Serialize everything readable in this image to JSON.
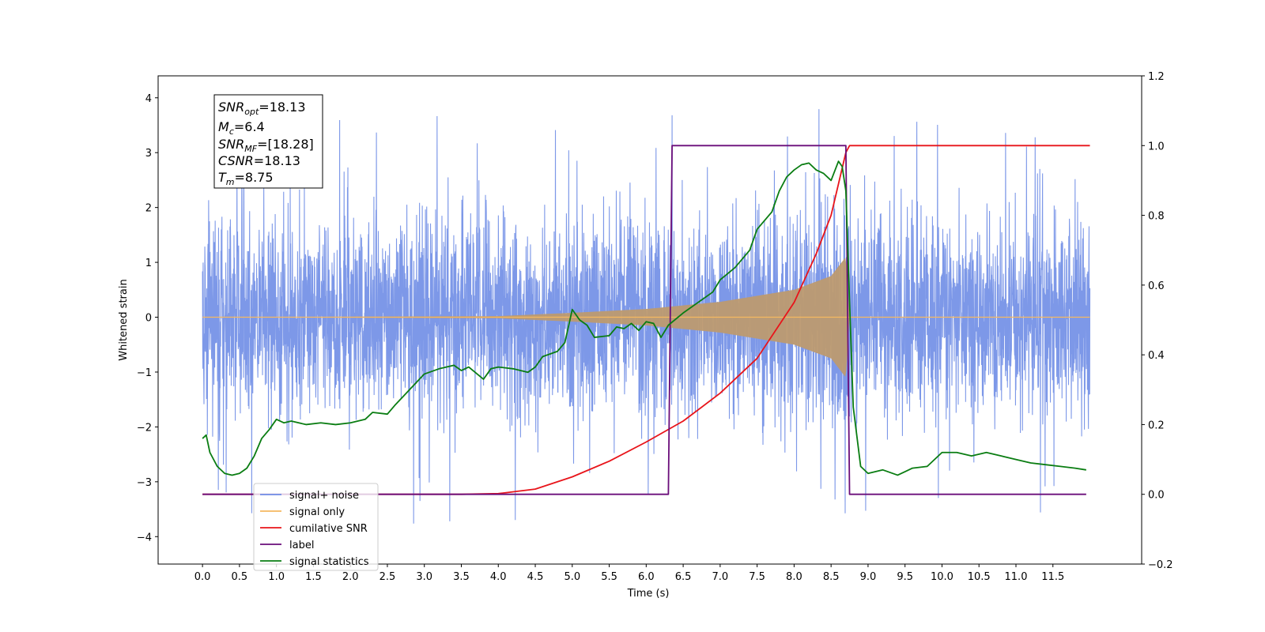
{
  "chart_data": {
    "type": "line",
    "xlabel": "Time (s)",
    "ylabel": "Whitened strain",
    "xlim": [
      -0.6,
      12.7
    ],
    "ylim": [
      -4.5,
      4.4
    ],
    "y2lim": [
      -0.2,
      1.2
    ],
    "x_ticks": [
      0.0,
      0.5,
      1.0,
      1.5,
      2.0,
      2.5,
      3.0,
      3.5,
      4.0,
      4.5,
      5.0,
      5.5,
      6.0,
      6.5,
      7.0,
      7.5,
      8.0,
      8.5,
      9.0,
      9.5,
      10.0,
      10.5,
      11.0,
      11.5
    ],
    "x_tick_labels": [
      "0.0",
      "0.5",
      "1.0",
      "1.5",
      "2.0",
      "2.5",
      "3.0",
      "3.5",
      "4.0",
      "4.5",
      "5.0",
      "5.5",
      "6.0",
      "6.5",
      "7.0",
      "7.5",
      "8.0",
      "8.5",
      "9.0",
      "9.5",
      "10.0",
      "10.5",
      "11.0",
      "11.5"
    ],
    "y_ticks": [
      -4,
      -3,
      -2,
      -1,
      0,
      1,
      2,
      3,
      4
    ],
    "y_tick_labels": [
      "−4",
      "−3",
      "−2",
      "−1",
      "0",
      "1",
      "2",
      "3",
      "4"
    ],
    "y2_ticks": [
      -0.2,
      0.0,
      0.2,
      0.4,
      0.6,
      0.8,
      1.0,
      1.2
    ],
    "y2_tick_labels": [
      "−0.2",
      "0.0",
      "0.2",
      "0.4",
      "0.6",
      "0.8",
      "1.0",
      "1.2"
    ],
    "legend_position": "lower-left",
    "annotation": {
      "snr_opt": {
        "symbol": "SNR",
        "sub": "opt",
        "value": "=18.13"
      },
      "mc": {
        "symbol": "M",
        "sub": "c",
        "value": "=6.4"
      },
      "snr_mf": {
        "symbol": "SNR",
        "sub": "MF",
        "value": "=[18.28]"
      },
      "csnr": {
        "symbol": "CSNR",
        "value": "=18.13"
      },
      "tm": {
        "symbol": "T",
        "sub": "m",
        "value": "=8.75"
      }
    },
    "series": [
      {
        "name": "signal+ noise",
        "color": "#6f8de6",
        "axis": "left",
        "envelope": {
          "t_start": 0.0,
          "t_end": 12.0,
          "merger": 8.75,
          "noise_sigma": 0.9,
          "typical_max": 2.3,
          "typical_min": -2.3,
          "outlier_max": 4.05,
          "outlier_min": -4.1
        }
      },
      {
        "name": "signal only",
        "color": "#f5b860",
        "axis": "left",
        "chirp": {
          "t_start": 0.0,
          "t_end": 12.0,
          "merger": 8.75,
          "amplitude_points": [
            [
              0.0,
              0.0
            ],
            [
              4.0,
              0.02
            ],
            [
              5.0,
              0.08
            ],
            [
              6.0,
              0.15
            ],
            [
              7.0,
              0.28
            ],
            [
              8.0,
              0.5
            ],
            [
              8.5,
              0.75
            ],
            [
              8.7,
              1.1
            ],
            [
              8.75,
              0.0
            ]
          ]
        }
      },
      {
        "name": "cumilative SNR",
        "color": "#e8141a",
        "axis": "right",
        "points": [
          [
            0.0,
            0.0
          ],
          [
            3.5,
            0.0
          ],
          [
            4.0,
            0.002
          ],
          [
            4.5,
            0.015
          ],
          [
            5.0,
            0.05
          ],
          [
            5.5,
            0.095
          ],
          [
            6.0,
            0.15
          ],
          [
            6.5,
            0.21
          ],
          [
            7.0,
            0.29
          ],
          [
            7.5,
            0.39
          ],
          [
            8.0,
            0.55
          ],
          [
            8.3,
            0.69
          ],
          [
            8.5,
            0.8
          ],
          [
            8.7,
            0.98
          ],
          [
            8.75,
            1.0
          ],
          [
            12.0,
            1.0
          ]
        ]
      },
      {
        "name": "label",
        "color": "#6a0d7a",
        "axis": "right",
        "points": [
          [
            0.0,
            0.0
          ],
          [
            6.3,
            0.0
          ],
          [
            6.35,
            1.0
          ],
          [
            8.7,
            1.0
          ],
          [
            8.75,
            0.0
          ],
          [
            11.95,
            0.0
          ]
        ]
      },
      {
        "name": "signal statistics",
        "color": "#0a7d12",
        "axis": "right",
        "points": [
          [
            0.0,
            0.16
          ],
          [
            0.05,
            0.17
          ],
          [
            0.1,
            0.12
          ],
          [
            0.2,
            0.08
          ],
          [
            0.3,
            0.06
          ],
          [
            0.4,
            0.055
          ],
          [
            0.5,
            0.06
          ],
          [
            0.6,
            0.075
          ],
          [
            0.7,
            0.11
          ],
          [
            0.8,
            0.16
          ],
          [
            0.9,
            0.185
          ],
          [
            1.0,
            0.215
          ],
          [
            1.1,
            0.205
          ],
          [
            1.2,
            0.21
          ],
          [
            1.4,
            0.2
          ],
          [
            1.6,
            0.205
          ],
          [
            1.8,
            0.2
          ],
          [
            2.0,
            0.205
          ],
          [
            2.2,
            0.215
          ],
          [
            2.3,
            0.235
          ],
          [
            2.5,
            0.23
          ],
          [
            2.6,
            0.255
          ],
          [
            2.8,
            0.3
          ],
          [
            3.0,
            0.345
          ],
          [
            3.2,
            0.36
          ],
          [
            3.4,
            0.37
          ],
          [
            3.5,
            0.355
          ],
          [
            3.6,
            0.365
          ],
          [
            3.8,
            0.33
          ],
          [
            3.9,
            0.36
          ],
          [
            4.0,
            0.365
          ],
          [
            4.2,
            0.36
          ],
          [
            4.4,
            0.35
          ],
          [
            4.5,
            0.365
          ],
          [
            4.6,
            0.395
          ],
          [
            4.8,
            0.41
          ],
          [
            4.9,
            0.435
          ],
          [
            5.0,
            0.53
          ],
          [
            5.1,
            0.5
          ],
          [
            5.2,
            0.485
          ],
          [
            5.3,
            0.45
          ],
          [
            5.5,
            0.455
          ],
          [
            5.6,
            0.48
          ],
          [
            5.7,
            0.475
          ],
          [
            5.8,
            0.49
          ],
          [
            5.9,
            0.47
          ],
          [
            6.0,
            0.495
          ],
          [
            6.1,
            0.49
          ],
          [
            6.2,
            0.45
          ],
          [
            6.3,
            0.485
          ],
          [
            6.5,
            0.52
          ],
          [
            6.7,
            0.55
          ],
          [
            6.9,
            0.58
          ],
          [
            7.0,
            0.615
          ],
          [
            7.2,
            0.65
          ],
          [
            7.4,
            0.7
          ],
          [
            7.5,
            0.76
          ],
          [
            7.7,
            0.81
          ],
          [
            7.8,
            0.87
          ],
          [
            7.9,
            0.91
          ],
          [
            8.0,
            0.93
          ],
          [
            8.1,
            0.945
          ],
          [
            8.2,
            0.95
          ],
          [
            8.3,
            0.93
          ],
          [
            8.4,
            0.92
          ],
          [
            8.5,
            0.9
          ],
          [
            8.6,
            0.955
          ],
          [
            8.65,
            0.94
          ],
          [
            8.7,
            0.87
          ],
          [
            8.75,
            0.55
          ],
          [
            8.8,
            0.25
          ],
          [
            8.9,
            0.08
          ],
          [
            9.0,
            0.06
          ],
          [
            9.2,
            0.07
          ],
          [
            9.4,
            0.055
          ],
          [
            9.6,
            0.075
          ],
          [
            9.8,
            0.08
          ],
          [
            10.0,
            0.12
          ],
          [
            10.2,
            0.12
          ],
          [
            10.4,
            0.11
          ],
          [
            10.6,
            0.12
          ],
          [
            10.8,
            0.11
          ],
          [
            11.0,
            0.1
          ],
          [
            11.2,
            0.09
          ],
          [
            11.4,
            0.085
          ],
          [
            11.6,
            0.08
          ],
          [
            11.8,
            0.075
          ],
          [
            11.95,
            0.07
          ]
        ]
      }
    ]
  }
}
